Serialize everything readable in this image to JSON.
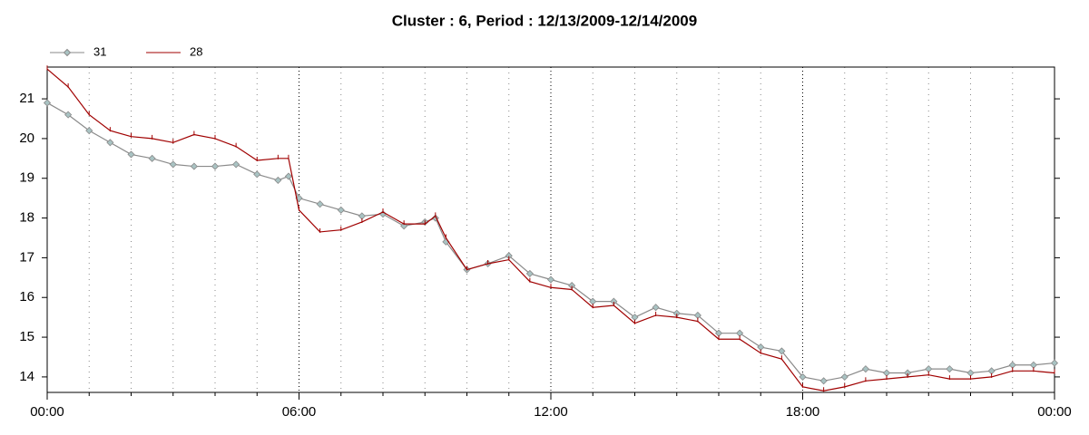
{
  "chart_data": {
    "type": "line",
    "title": "Cluster : 6, Period : 12/13/2009-12/14/2009",
    "x": [
      0,
      0.5,
      1,
      1.5,
      2,
      2.5,
      3,
      3.5,
      4,
      4.5,
      5,
      5.5,
      5.75,
      6,
      6.5,
      7,
      7.5,
      8,
      8.5,
      9,
      9.25,
      9.5,
      10,
      10.5,
      11,
      11.5,
      12,
      12.5,
      13,
      13.5,
      14,
      14.5,
      15,
      15.5,
      16,
      16.5,
      17,
      17.5,
      18,
      18.5,
      19,
      19.5,
      20,
      20.5,
      21,
      21.5,
      22,
      22.5,
      23,
      23.5,
      24
    ],
    "series": [
      {
        "name": "31",
        "color": "#8a8a8a",
        "marker": "diamond",
        "marker_color": "#a9c3c3",
        "values": [
          20.9,
          20.6,
          20.2,
          19.9,
          19.6,
          19.5,
          19.35,
          19.3,
          19.3,
          19.35,
          19.1,
          18.95,
          19.05,
          18.5,
          18.35,
          18.2,
          18.05,
          18.1,
          17.8,
          17.9,
          18.0,
          17.4,
          16.7,
          16.85,
          17.05,
          16.6,
          16.45,
          16.3,
          15.9,
          15.9,
          15.5,
          15.75,
          15.6,
          15.55,
          15.1,
          15.1,
          14.75,
          14.65,
          14.0,
          13.9,
          14.0,
          14.2,
          14.1,
          14.1,
          14.2,
          14.2,
          14.1,
          14.15,
          14.3,
          14.3,
          14.35
        ]
      },
      {
        "name": "28",
        "color": "#a00000",
        "marker": "tick",
        "marker_color": "#a00000",
        "values": [
          21.75,
          21.3,
          20.6,
          20.2,
          20.05,
          20.0,
          19.9,
          20.1,
          20.0,
          19.8,
          19.45,
          19.5,
          19.5,
          18.2,
          17.65,
          17.7,
          17.9,
          18.15,
          17.85,
          17.85,
          18.05,
          17.5,
          16.7,
          16.85,
          16.95,
          16.4,
          16.25,
          16.2,
          15.75,
          15.8,
          15.35,
          15.55,
          15.5,
          15.4,
          14.95,
          14.95,
          14.6,
          14.45,
          13.75,
          13.65,
          13.75,
          13.9,
          13.95,
          14.0,
          14.05,
          13.95,
          13.95,
          14.0,
          14.15,
          14.15,
          14.1
        ]
      }
    ],
    "xlim": [
      0,
      24
    ],
    "xticks": [
      {
        "value": 0,
        "label": "00:00"
      },
      {
        "value": 6,
        "label": "06:00"
      },
      {
        "value": 12,
        "label": "12:00"
      },
      {
        "value": 18,
        "label": "18:00"
      },
      {
        "value": 24,
        "label": "00:00"
      }
    ],
    "x_minor_ticks": [
      1,
      2,
      3,
      4,
      5,
      7,
      8,
      9,
      10,
      11,
      13,
      14,
      15,
      16,
      17,
      19,
      20,
      21,
      22,
      23
    ],
    "ylim": [
      13.61,
      21.8
    ],
    "yticks": [
      14,
      15,
      16,
      17,
      18,
      19,
      20,
      21
    ],
    "grid": true,
    "legend": "top-left"
  }
}
